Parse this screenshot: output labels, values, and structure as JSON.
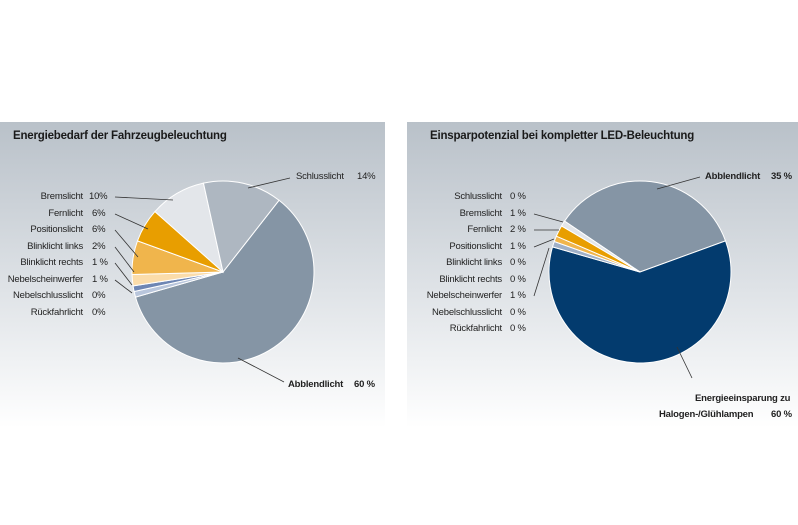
{
  "chart_data": [
    {
      "type": "pie",
      "title": "Energiebedarf der Fahrzeugbeleuchtung",
      "slices": [
        {
          "label": "Abblendlicht",
          "value": 60,
          "display": "60 %",
          "color": "#8595a5"
        },
        {
          "label": "Rückfahrlicht",
          "value": 0,
          "display": "0%",
          "color": "#d0d6de"
        },
        {
          "label": "Nebelschlusslicht",
          "value": 0,
          "display": "0%",
          "color": "#c8d0dc"
        },
        {
          "label": "Nebelscheinwerfer",
          "value": 1,
          "display": "1 %",
          "color": "#b9c6dc"
        },
        {
          "label": "Blinklicht rechts",
          "value": 1,
          "display": "1 %",
          "color": "#6e86b4"
        },
        {
          "label": "Blinklicht links",
          "value": 2,
          "display": "2%",
          "color": "#fbdcaa"
        },
        {
          "label": "Positionslicht",
          "value": 6,
          "display": "6%",
          "color": "#f0b54c"
        },
        {
          "label": "Fernlicht",
          "value": 6,
          "display": "6%",
          "color": "#e89e00"
        },
        {
          "label": "Bremslicht",
          "value": 10,
          "display": "10%",
          "color": "#e3e6ea"
        },
        {
          "label": "Schlusslicht",
          "value": 14,
          "display": "14%",
          "color": "#aeb7c1"
        }
      ]
    },
    {
      "type": "pie",
      "title": "Einsparpotenzial bei kompletter LED-Beleuchtung",
      "slices": [
        {
          "label": "Abblendlicht",
          "value": 35,
          "display": "35 %",
          "color": "#8595a5"
        },
        {
          "label": "Energieeinsparung zu Halogen-/Glühlampen",
          "label_line1": "Energieeinsparung zu",
          "label_line2": "Halogen-/Glühlampen",
          "value": 60,
          "display": "60 %",
          "color": "#033b6e"
        },
        {
          "label": "Rückfahrlicht",
          "value": 0,
          "display": "0 %",
          "color": "#c8d0dc"
        },
        {
          "label": "Nebelschlusslicht",
          "value": 0,
          "display": "0 %",
          "color": "#c8d0dc"
        },
        {
          "label": "Nebelscheinwerfer",
          "value": 1,
          "display": "1 %",
          "color": "#9fb0c8"
        },
        {
          "label": "Blinklicht rechts",
          "value": 0,
          "display": "0 %",
          "color": "#6e86b4"
        },
        {
          "label": "Blinklicht links",
          "value": 0,
          "display": "0 %",
          "color": "#fbdcaa"
        },
        {
          "label": "Positionslicht",
          "value": 1,
          "display": "1 %",
          "color": "#f0b54c"
        },
        {
          "label": "Fernlicht",
          "value": 2,
          "display": "2 %",
          "color": "#e89e00"
        },
        {
          "label": "Bremslicht",
          "value": 1,
          "display": "1 %",
          "color": "#e3e6ea"
        },
        {
          "label": "Schlusslicht",
          "value": 0,
          "display": "0 %",
          "color": "#aeb7c1"
        }
      ]
    }
  ]
}
